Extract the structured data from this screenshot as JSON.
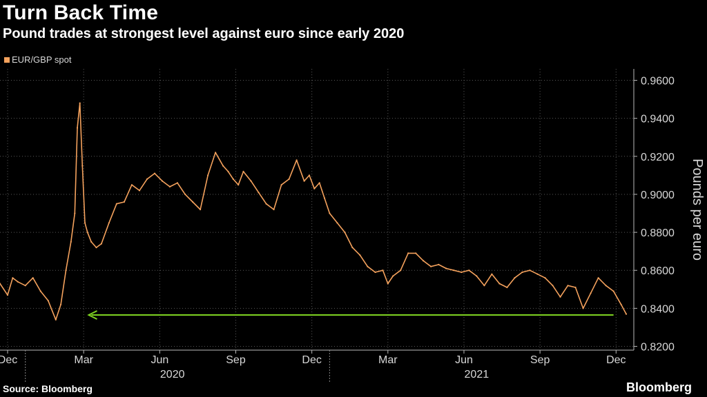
{
  "chart_data": {
    "type": "line",
    "title": "Turn Back Time",
    "subtitle": "Pound trades at strongest level against euro since early 2020",
    "ylabel": "Pounds per euro",
    "xlabel": "",
    "ylim": [
      0.818,
      0.966
    ],
    "yticks": [
      0.82,
      0.84,
      0.86,
      0.88,
      0.9,
      0.92,
      0.94,
      0.96
    ],
    "ytick_labels": [
      "0.8200",
      "0.8400",
      "0.8600",
      "0.8800",
      "0.9000",
      "0.9200",
      "0.9400",
      "0.9600"
    ],
    "xlim": [
      0,
      25.0
    ],
    "x_ticks": [
      {
        "label": "Dec",
        "x": 0.3
      },
      {
        "label": "Mar",
        "x": 3.3
      },
      {
        "label": "Jun",
        "x": 6.3
      },
      {
        "label": "Sep",
        "x": 9.3
      },
      {
        "label": "Dec",
        "x": 12.3
      },
      {
        "label": "Mar",
        "x": 15.3
      },
      {
        "label": "Jun",
        "x": 18.3
      },
      {
        "label": "Sep",
        "x": 21.3
      },
      {
        "label": "Dec",
        "x": 24.3
      }
    ],
    "year_labels": [
      {
        "label": "2020",
        "x": 6.8
      },
      {
        "label": "2021",
        "x": 18.8
      }
    ],
    "year_dividers": [
      1.0,
      13.0
    ],
    "series": [
      {
        "name": "EUR/GBP spot",
        "color": "#f5a25d",
        "x": [
          0.0,
          0.3,
          0.5,
          0.7,
          1.0,
          1.3,
          1.6,
          1.9,
          2.2,
          2.4,
          2.6,
          2.8,
          2.95,
          3.05,
          3.15,
          3.25,
          3.35,
          3.45,
          3.6,
          3.8,
          4.0,
          4.3,
          4.6,
          4.9,
          5.2,
          5.5,
          5.8,
          6.1,
          6.4,
          6.7,
          7.0,
          7.3,
          7.6,
          7.9,
          8.2,
          8.5,
          8.8,
          9.0,
          9.2,
          9.4,
          9.6,
          9.9,
          10.2,
          10.5,
          10.8,
          11.1,
          11.4,
          11.7,
          12.0,
          12.2,
          12.4,
          12.6,
          12.8,
          13.0,
          13.3,
          13.6,
          13.9,
          14.2,
          14.5,
          14.8,
          15.1,
          15.3,
          15.5,
          15.8,
          16.1,
          16.4,
          16.7,
          17.0,
          17.3,
          17.6,
          17.9,
          18.2,
          18.5,
          18.8,
          19.1,
          19.4,
          19.7,
          20.0,
          20.3,
          20.6,
          20.9,
          21.2,
          21.5,
          21.8,
          22.1,
          22.4,
          22.7,
          23.0,
          23.3,
          23.6,
          23.9,
          24.2,
          24.5,
          24.7
        ],
        "values": [
          0.853,
          0.847,
          0.856,
          0.854,
          0.852,
          0.856,
          0.849,
          0.844,
          0.834,
          0.842,
          0.86,
          0.875,
          0.89,
          0.935,
          0.948,
          0.915,
          0.885,
          0.88,
          0.875,
          0.872,
          0.874,
          0.885,
          0.895,
          0.896,
          0.905,
          0.902,
          0.908,
          0.911,
          0.907,
          0.904,
          0.906,
          0.9,
          0.896,
          0.892,
          0.91,
          0.922,
          0.915,
          0.912,
          0.908,
          0.905,
          0.912,
          0.907,
          0.901,
          0.895,
          0.892,
          0.905,
          0.908,
          0.918,
          0.907,
          0.91,
          0.903,
          0.906,
          0.898,
          0.89,
          0.885,
          0.88,
          0.872,
          0.868,
          0.862,
          0.859,
          0.86,
          0.853,
          0.857,
          0.86,
          0.869,
          0.869,
          0.865,
          0.862,
          0.863,
          0.861,
          0.86,
          0.859,
          0.86,
          0.857,
          0.852,
          0.858,
          0.853,
          0.851,
          0.856,
          0.859,
          0.86,
          0.858,
          0.856,
          0.852,
          0.846,
          0.852,
          0.851,
          0.84,
          0.848,
          0.856,
          0.852,
          0.849,
          0.842,
          0.837
        ]
      }
    ],
    "annotations": [
      {
        "type": "arrow",
        "color": "#7ed321",
        "from_x": 24.2,
        "to_x": 3.5,
        "y": 0.8365
      }
    ]
  },
  "legend": {
    "label": "EUR/GBP spot",
    "color": "#f5a25d"
  },
  "source": "Source: Bloomberg",
  "brand": "Bloomberg"
}
